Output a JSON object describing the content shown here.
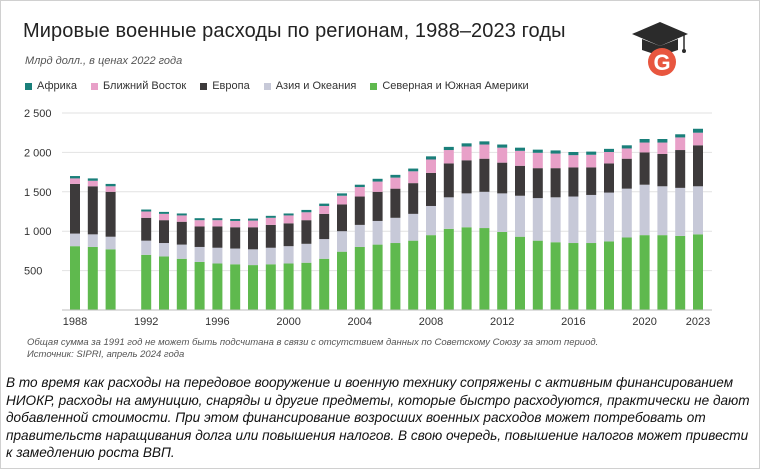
{
  "title": "Мировые военные расходы по регионам, 1988–2023 годы",
  "subtitle": "Млрд долл., в ценах 2022 года",
  "icons": {
    "logo": "graduation-cap-g-logo"
  },
  "colors": {
    "africa": "#1a7f7a",
    "middle_east": "#e8a0c8",
    "europe": "#3d3a3b",
    "asia_oceania": "#c7c9d8",
    "americas": "#5fb94e"
  },
  "legend": [
    {
      "label": "Африка",
      "key": "africa"
    },
    {
      "label": "Ближний Восток",
      "key": "middle_east"
    },
    {
      "label": "Европа",
      "key": "europe"
    },
    {
      "label": "Азия и Океания",
      "key": "asia_oceania"
    },
    {
      "label": "Северная и Южная Америки",
      "key": "americas"
    }
  ],
  "chart_data": {
    "type": "bar",
    "stacked": true,
    "ylim": [
      0,
      2500
    ],
    "yticks": [
      0,
      500,
      1000,
      1500,
      2000,
      2500
    ],
    "ytick_labels": [
      "",
      "500",
      "1 000",
      "1 500",
      "2 000",
      "2 500"
    ],
    "xtick_labels": [
      "1988",
      "1992",
      "1996",
      "2000",
      "2004",
      "2008",
      "2012",
      "2016",
      "2020",
      "2023"
    ],
    "grid": true,
    "legend_position": "top",
    "categories": [
      "1988",
      "1989",
      "1990",
      "1992",
      "1993",
      "1994",
      "1995",
      "1996",
      "1997",
      "1998",
      "1999",
      "2000",
      "2001",
      "2002",
      "2003",
      "2004",
      "2005",
      "2006",
      "2007",
      "2008",
      "2009",
      "2010",
      "2011",
      "2012",
      "2013",
      "2014",
      "2015",
      "2016",
      "2017",
      "2018",
      "2019",
      "2020",
      "2021",
      "2022",
      "2023"
    ],
    "series": [
      {
        "name": "Северная и Южная Америки",
        "key": "americas",
        "values": [
          810,
          800,
          770,
          700,
          680,
          650,
          610,
          590,
          580,
          570,
          580,
          590,
          600,
          650,
          740,
          800,
          830,
          850,
          880,
          950,
          1030,
          1050,
          1040,
          990,
          930,
          880,
          860,
          850,
          850,
          870,
          920,
          950,
          950,
          940,
          960
        ]
      },
      {
        "name": "Азия и Океания",
        "key": "asia_oceania",
        "values": [
          160,
          160,
          160,
          180,
          170,
          180,
          190,
          200,
          200,
          200,
          210,
          220,
          240,
          250,
          260,
          280,
          300,
          320,
          340,
          370,
          400,
          430,
          460,
          490,
          520,
          540,
          570,
          590,
          610,
          620,
          620,
          640,
          620,
          610,
          610
        ]
      },
      {
        "name": "Европа",
        "key": "europe",
        "values": [
          630,
          610,
          570,
          290,
          290,
          290,
          260,
          270,
          270,
          280,
          290,
          290,
          300,
          320,
          340,
          360,
          370,
          370,
          390,
          420,
          430,
          420,
          420,
          390,
          380,
          380,
          370,
          370,
          350,
          370,
          380,
          410,
          410,
          480,
          520
        ]
      },
      {
        "name": "Ближний Восток",
        "key": "middle_east",
        "values": [
          70,
          70,
          70,
          80,
          80,
          80,
          80,
          80,
          80,
          85,
          90,
          100,
          100,
          100,
          110,
          120,
          130,
          140,
          150,
          170,
          170,
          175,
          180,
          190,
          190,
          195,
          185,
          155,
          160,
          145,
          130,
          125,
          145,
          160,
          160
        ]
      },
      {
        "name": "Африка",
        "key": "africa",
        "values": [
          30,
          30,
          30,
          25,
          25,
          25,
          25,
          25,
          25,
          25,
          25,
          25,
          30,
          30,
          30,
          30,
          35,
          35,
          35,
          40,
          40,
          40,
          40,
          40,
          40,
          40,
          40,
          40,
          40,
          40,
          40,
          45,
          45,
          40,
          50
        ]
      }
    ]
  },
  "note_lines": [
    "Общая сумма за 1991 год не может быть подсчитана в связи с отсутствием данных по Советскому Союзу за этот период.",
    "Источник: SIPRI, апрель 2024 года"
  ],
  "caption": "В то время как расходы на передовое вооружение и военную технику сопряжены с активным финансированием НИОКР, расходы на амуницию, снаряды и другие предметы, которые быстро расходуются, практически не дают добавленной стоимости. При этом финансирование возросших военных расходов может потребовать от правительств наращивания долга или повышения налогов. В свою очередь, повышение налогов может привести к замедлению роста ВВП."
}
